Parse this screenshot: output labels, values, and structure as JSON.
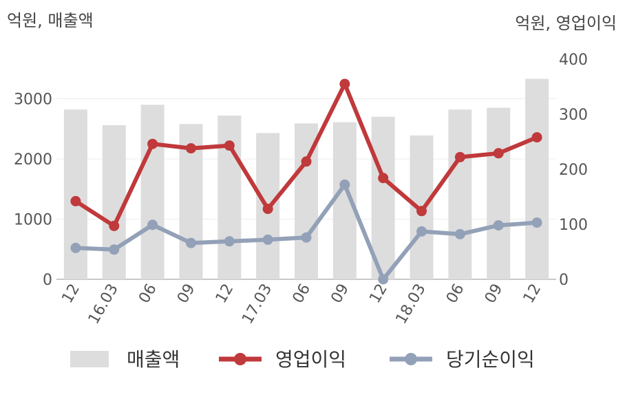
{
  "chart_data": {
    "type": "bar",
    "left_axis_unit": "억원, 매출액",
    "right_axis_unit": "억원, 영업이익",
    "categories": [
      "12",
      "16.03",
      "06",
      "09",
      "12",
      "17.03",
      "06",
      "09",
      "12",
      "18.03",
      "06",
      "09",
      "12"
    ],
    "left_ylim": [
      0,
      3000
    ],
    "left_ticks": [
      0,
      1000,
      2000,
      3000
    ],
    "right_ylim": [
      0,
      400
    ],
    "right_ticks": [
      0,
      100,
      200,
      300,
      400
    ],
    "grid": true,
    "legend_position": "bottom",
    "series": [
      {
        "name": "매출액",
        "type": "bar",
        "axis": "left",
        "color": "#dddddd",
        "values": [
          2820,
          2560,
          2900,
          2580,
          2720,
          2430,
          2590,
          2610,
          2700,
          2390,
          2820,
          2850,
          3330
        ]
      },
      {
        "name": "영업이익",
        "type": "line",
        "axis": "right",
        "color": "#c0393b",
        "values": [
          142,
          97,
          246,
          238,
          243,
          128,
          214,
          355,
          184,
          124,
          222,
          229,
          258
        ]
      },
      {
        "name": "당기순이익",
        "type": "line",
        "axis": "right",
        "color": "#93a1b8",
        "values": [
          57,
          54,
          99,
          66,
          69,
          72,
          76,
          172,
          0,
          87,
          82,
          98,
          103
        ]
      }
    ]
  }
}
